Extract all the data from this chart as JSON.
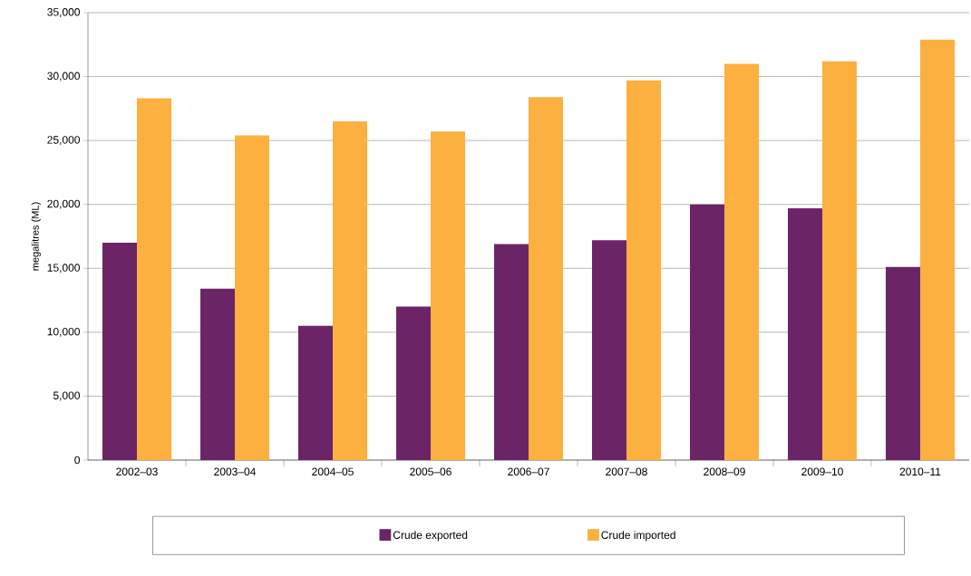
{
  "chart_data": {
    "type": "bar",
    "ylabel": "megalitres (ML)",
    "categories": [
      "2002–03",
      "2003–04",
      "2004–05",
      "2005–06",
      "2006–07",
      "2007–08",
      "2008–09",
      "2009–10",
      "2010–11"
    ],
    "series": [
      {
        "name": "Crude exported",
        "color": "#6b2566",
        "values": [
          17000,
          13400,
          10500,
          12000,
          16900,
          17200,
          20000,
          19700,
          15100
        ]
      },
      {
        "name": "Crude imported",
        "color": "#fbb040",
        "values": [
          28300,
          25400,
          26500,
          25700,
          28400,
          29700,
          31000,
          31200,
          32900
        ]
      }
    ],
    "ylim": [
      0,
      35000
    ],
    "yticks": [
      0,
      {
        "value": 5000,
        "label": "5,000"
      },
      {
        "value": 10000,
        "label": "10,000"
      },
      {
        "value": 15000,
        "label": "15,000"
      },
      {
        "value": 20000,
        "label": "20,000"
      },
      {
        "value": 25000,
        "label": "25,000"
      },
      {
        "value": 30000,
        "label": "30,000"
      },
      {
        "value": 35000,
        "label": "35,000"
      }
    ],
    "grid": "y",
    "legend": "bottom"
  }
}
